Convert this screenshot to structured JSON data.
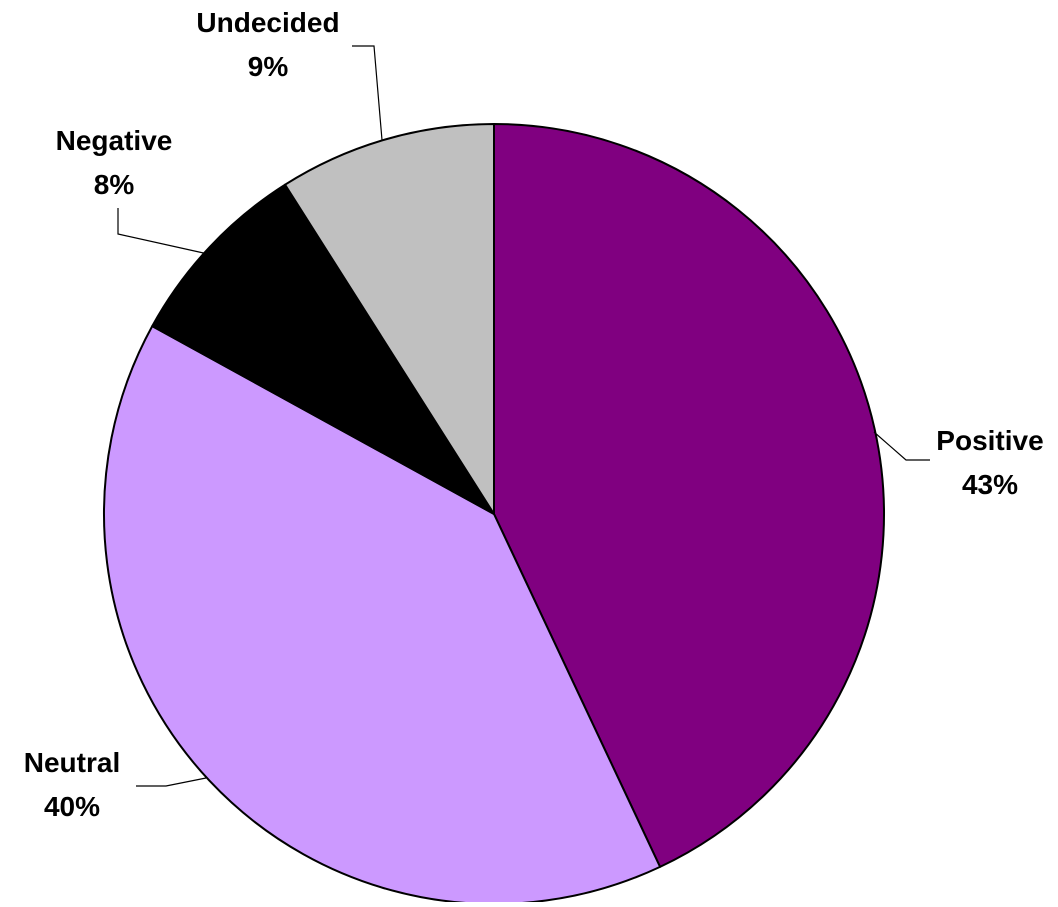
{
  "chart_data": {
    "type": "pie",
    "title": "",
    "start_angle_deg": 0,
    "direction": "clockwise",
    "slices": [
      {
        "label": "Positive",
        "value": 43,
        "value_text": "43%",
        "color": "#800080"
      },
      {
        "label": "Neutral",
        "value": 40,
        "value_text": "40%",
        "color": "#CC99FF"
      },
      {
        "label": "Negative",
        "value": 8,
        "value_text": "8%",
        "color": "#000000"
      },
      {
        "label": "Undecided",
        "value": 9,
        "value_text": "9%",
        "color": "#C0C0C0"
      }
    ],
    "legend": "none",
    "data_labels": "outside with leader lines"
  }
}
